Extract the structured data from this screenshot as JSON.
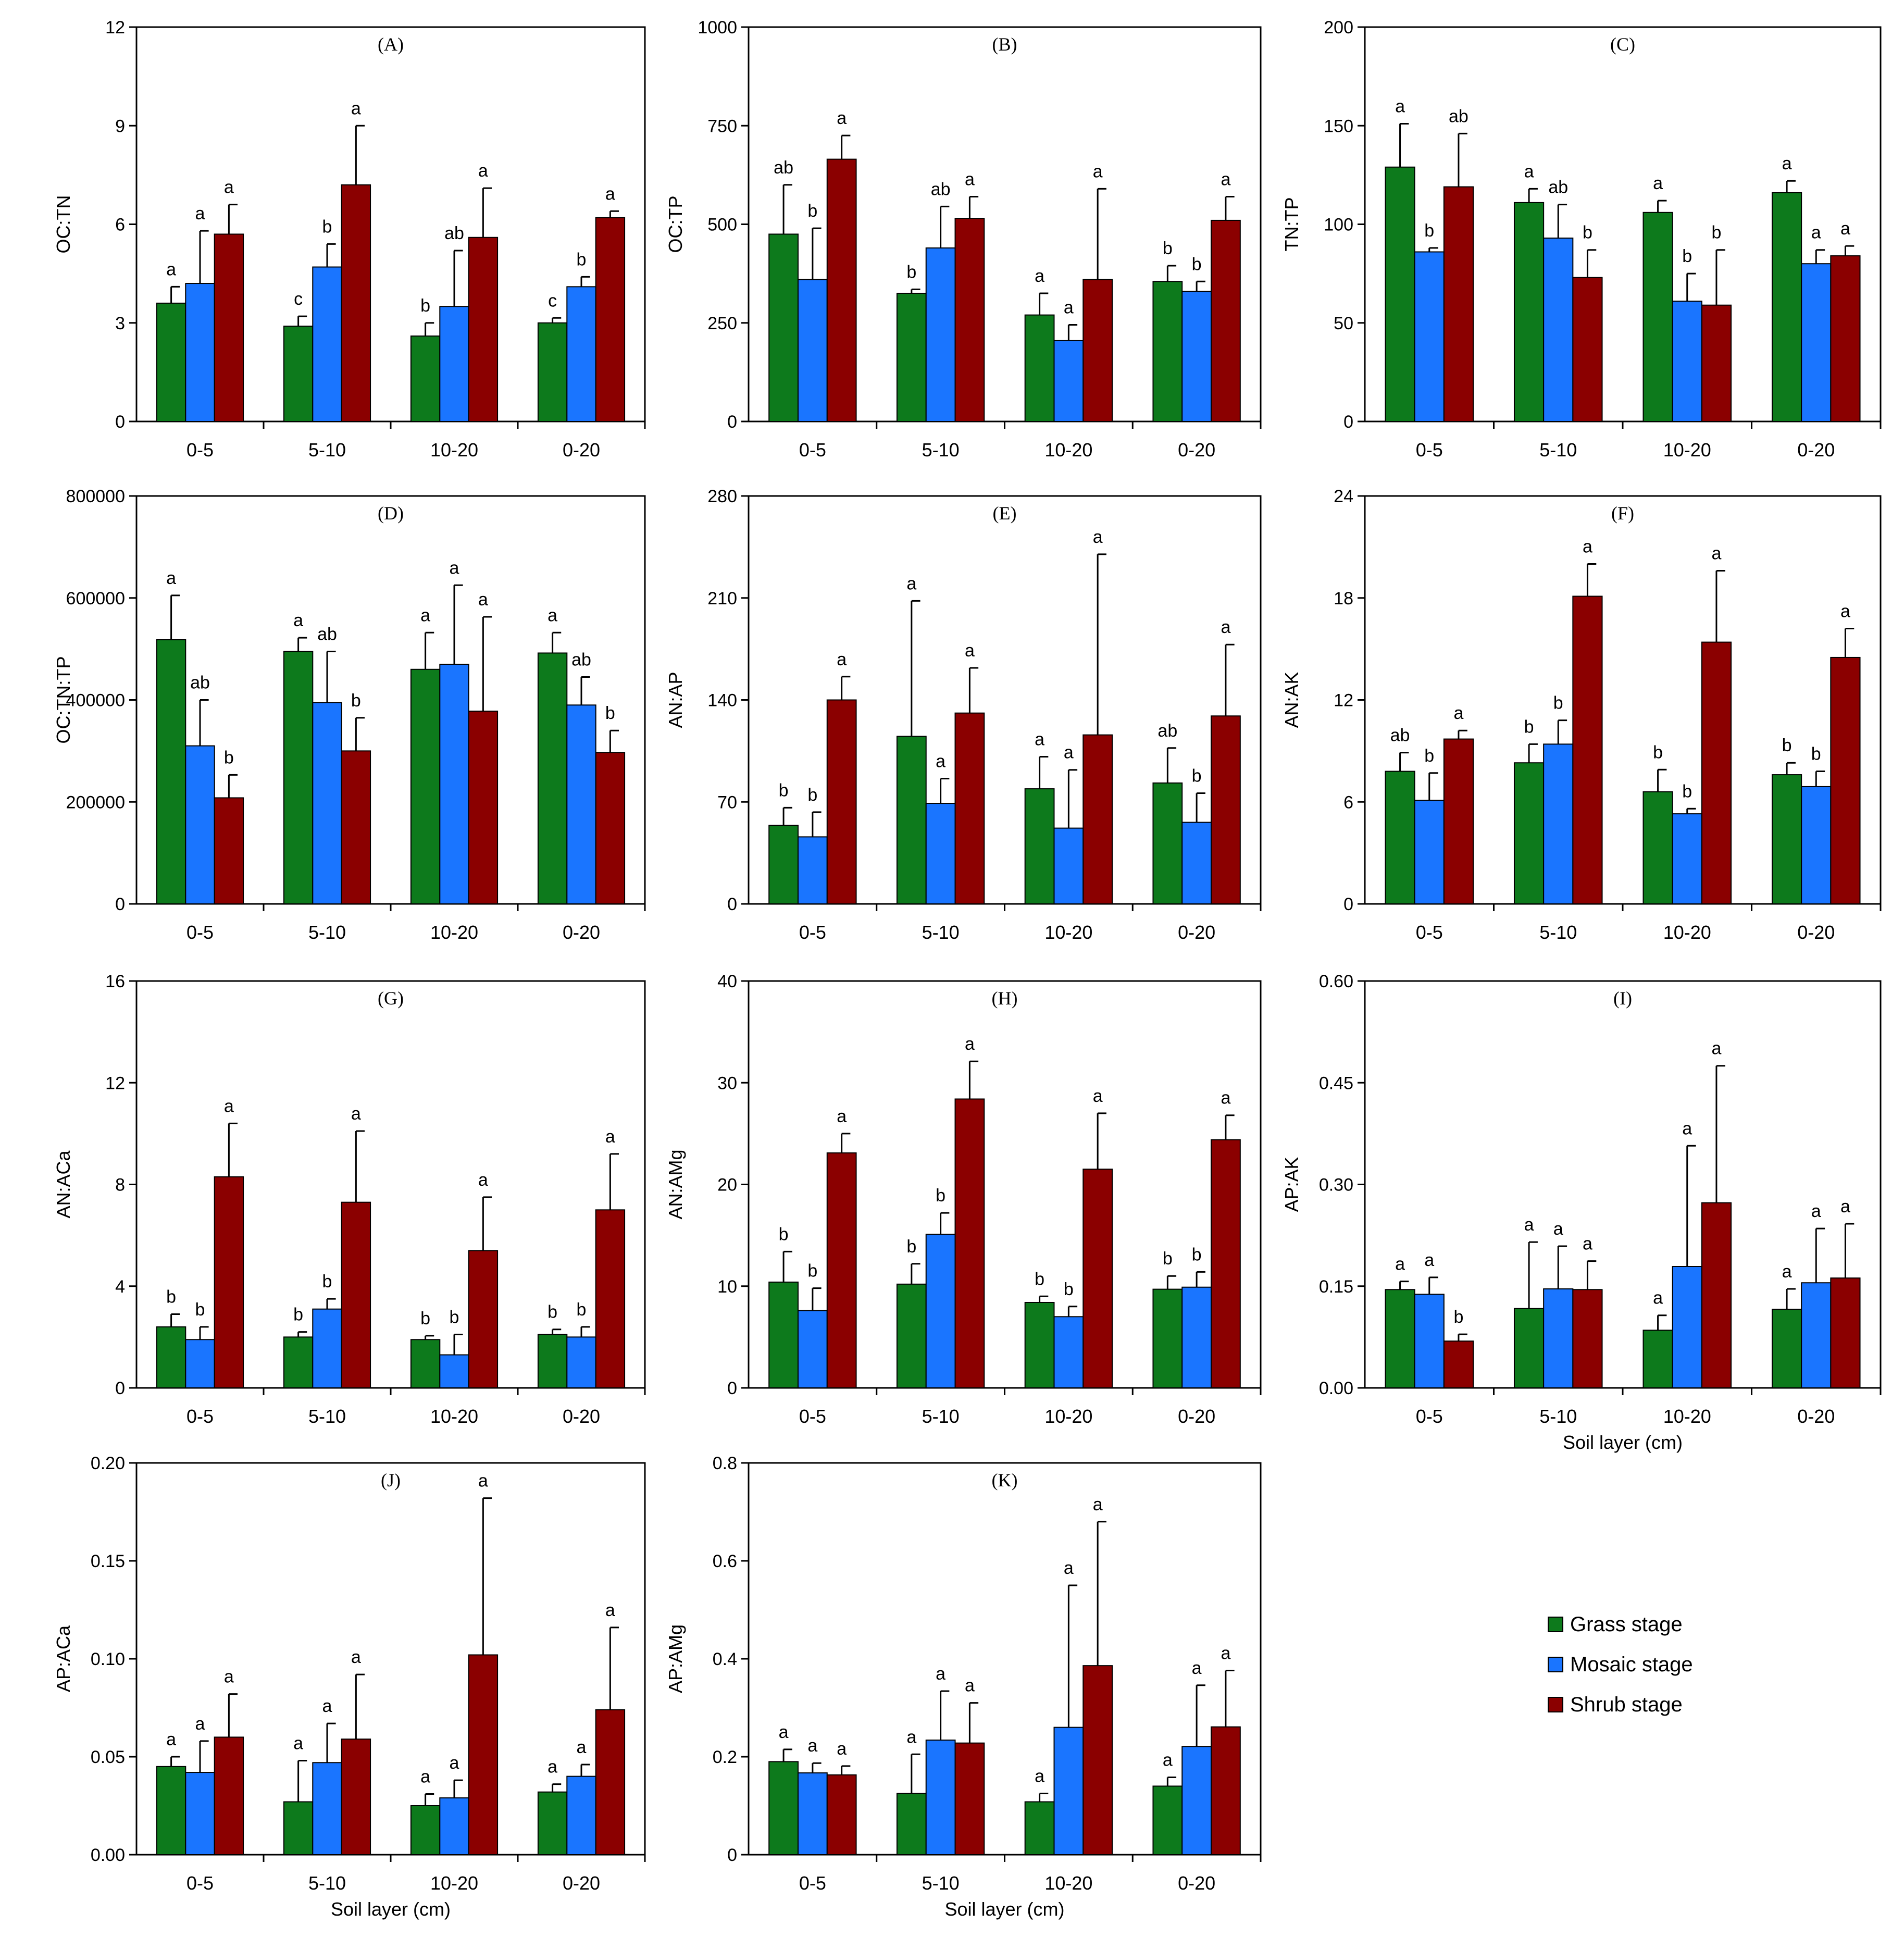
{
  "figure": {
    "legend": {
      "entries": [
        {
          "name": "Grass stage",
          "color": "#0d7a1c"
        },
        {
          "name": "Mosaic stage",
          "color": "#1a75ff"
        },
        {
          "name": "Shrub stage",
          "color": "#8b0000"
        }
      ]
    },
    "xlabel": "Soil layer (cm)"
  },
  "chart_data": [
    {
      "type": "bar",
      "title": "(A)",
      "ylabel": "OC:TN",
      "xlabel": "",
      "categories": [
        "0-5",
        "5-10",
        "10-20",
        "0-20"
      ],
      "ylim": [
        0,
        12
      ],
      "yticks": [
        "0",
        "3",
        "6",
        "9",
        "12"
      ],
      "series": [
        {
          "name": "Grass stage",
          "values": [
            3.6,
            2.9,
            2.6,
            3.0
          ],
          "errors": [
            0.5,
            0.3,
            0.4,
            0.15
          ],
          "letters": [
            "a",
            "c",
            "b",
            "c"
          ]
        },
        {
          "name": "Mosaic stage",
          "values": [
            4.2,
            4.7,
            3.5,
            4.1
          ],
          "errors": [
            1.6,
            0.7,
            1.7,
            0.3
          ],
          "letters": [
            "a",
            "b",
            "ab",
            "b"
          ]
        },
        {
          "name": "Shrub stage",
          "values": [
            5.7,
            7.2,
            5.6,
            6.2
          ],
          "errors": [
            0.9,
            1.8,
            1.5,
            0.2
          ],
          "letters": [
            "a",
            "a",
            "a",
            "a"
          ]
        }
      ]
    },
    {
      "type": "bar",
      "title": "(B)",
      "ylabel": "OC:TP",
      "xlabel": "",
      "categories": [
        "0-5",
        "5-10",
        "10-20",
        "0-20"
      ],
      "ylim": [
        0,
        1000
      ],
      "yticks": [
        "0",
        "250",
        "500",
        "750",
        "1000"
      ],
      "series": [
        {
          "name": "Grass stage",
          "values": [
            475,
            325,
            270,
            355
          ],
          "errors": [
            125,
            10,
            55,
            40
          ],
          "letters": [
            "ab",
            "b",
            "a",
            "b"
          ]
        },
        {
          "name": "Mosaic stage",
          "values": [
            360,
            440,
            205,
            330
          ],
          "errors": [
            130,
            105,
            40,
            25
          ],
          "letters": [
            "b",
            "ab",
            "a",
            "b"
          ]
        },
        {
          "name": "Shrub stage",
          "values": [
            665,
            515,
            360,
            510
          ],
          "errors": [
            60,
            55,
            230,
            60
          ],
          "letters": [
            "a",
            "a",
            "a",
            "a"
          ]
        }
      ]
    },
    {
      "type": "bar",
      "title": "(C)",
      "ylabel": "TN:TP",
      "xlabel": "",
      "categories": [
        "0-5",
        "5-10",
        "10-20",
        "0-20"
      ],
      "ylim": [
        0,
        200
      ],
      "yticks": [
        "0",
        "50",
        "100",
        "150",
        "200"
      ],
      "series": [
        {
          "name": "Grass stage",
          "values": [
            129,
            111,
            106,
            116
          ],
          "errors": [
            22,
            7,
            6,
            6
          ],
          "letters": [
            "a",
            "a",
            "a",
            "a"
          ]
        },
        {
          "name": "Mosaic stage",
          "values": [
            86,
            93,
            61,
            80
          ],
          "errors": [
            2,
            17,
            14,
            7
          ],
          "letters": [
            "b",
            "ab",
            "b",
            "a"
          ]
        },
        {
          "name": "Shrub stage",
          "values": [
            119,
            73,
            59,
            84
          ],
          "errors": [
            27,
            14,
            28,
            5
          ],
          "letters": [
            "ab",
            "b",
            "b",
            "a"
          ]
        }
      ]
    },
    {
      "type": "bar",
      "title": "(D)",
      "ylabel": "OC:TN:TP",
      "xlabel": "",
      "categories": [
        "0-5",
        "5-10",
        "10-20",
        "0-20"
      ],
      "ylim": [
        0,
        800000
      ],
      "yticks": [
        "0",
        "200000",
        "400000",
        "600000",
        "800000"
      ],
      "series": [
        {
          "name": "Grass stage",
          "values": [
            518000,
            495000,
            460000,
            492000
          ],
          "errors": [
            87000,
            27000,
            72000,
            40000
          ],
          "letters": [
            "a",
            "a",
            "a",
            "a"
          ]
        },
        {
          "name": "Mosaic stage",
          "values": [
            310000,
            395000,
            470000,
            390000
          ],
          "errors": [
            90000,
            100000,
            155000,
            55000
          ],
          "letters": [
            "ab",
            "ab",
            "a",
            "ab"
          ]
        },
        {
          "name": "Shrub stage",
          "values": [
            208000,
            300000,
            378000,
            297000
          ],
          "errors": [
            45000,
            65000,
            185000,
            43000
          ],
          "letters": [
            "b",
            "b",
            "a",
            "b"
          ]
        }
      ]
    },
    {
      "type": "bar",
      "title": "(E)",
      "ylabel": "AN:AP",
      "xlabel": "",
      "categories": [
        "0-5",
        "5-10",
        "10-20",
        "0-20"
      ],
      "ylim": [
        0,
        280
      ],
      "yticks": [
        "0",
        "70",
        "140",
        "210",
        "280"
      ],
      "series": [
        {
          "name": "Grass stage",
          "values": [
            54,
            115,
            79,
            83
          ],
          "errors": [
            12,
            93,
            22,
            24
          ],
          "letters": [
            "b",
            "a",
            "a",
            "ab"
          ]
        },
        {
          "name": "Mosaic stage",
          "values": [
            46,
            69,
            52,
            56
          ],
          "errors": [
            17,
            17,
            40,
            20
          ],
          "letters": [
            "b",
            "a",
            "a",
            "b"
          ]
        },
        {
          "name": "Shrub stage",
          "values": [
            140,
            131,
            116,
            129
          ],
          "errors": [
            16,
            31,
            124,
            49
          ],
          "letters": [
            "a",
            "a",
            "a",
            "a"
          ]
        }
      ]
    },
    {
      "type": "bar",
      "title": "(F)",
      "ylabel": "AN:AK",
      "xlabel": "",
      "categories": [
        "0-5",
        "5-10",
        "10-20",
        "0-20"
      ],
      "ylim": [
        0,
        24
      ],
      "yticks": [
        "0",
        "6",
        "12",
        "18",
        "24"
      ],
      "series": [
        {
          "name": "Grass stage",
          "values": [
            7.8,
            8.3,
            6.6,
            7.6
          ],
          "errors": [
            1.1,
            1.1,
            1.3,
            0.7
          ],
          "letters": [
            "ab",
            "b",
            "b",
            "b"
          ]
        },
        {
          "name": "Mosaic stage",
          "values": [
            6.1,
            9.4,
            5.3,
            6.9
          ],
          "errors": [
            1.6,
            1.4,
            0.3,
            0.9
          ],
          "letters": [
            "b",
            "b",
            "b",
            "b"
          ]
        },
        {
          "name": "Shrub stage",
          "values": [
            9.7,
            18.1,
            15.4,
            14.5
          ],
          "errors": [
            0.5,
            1.9,
            4.2,
            1.7
          ],
          "letters": [
            "a",
            "a",
            "a",
            "a"
          ]
        }
      ]
    },
    {
      "type": "bar",
      "title": "(G)",
      "ylabel": "AN:ACa",
      "xlabel": "",
      "categories": [
        "0-5",
        "5-10",
        "10-20",
        "0-20"
      ],
      "ylim": [
        0,
        16
      ],
      "yticks": [
        "0",
        "4",
        "8",
        "12",
        "16"
      ],
      "series": [
        {
          "name": "Grass stage",
          "values": [
            2.4,
            2.0,
            1.9,
            2.1
          ],
          "errors": [
            0.5,
            0.2,
            0.15,
            0.2
          ],
          "letters": [
            "b",
            "b",
            "b",
            "b"
          ]
        },
        {
          "name": "Mosaic stage",
          "values": [
            1.9,
            3.1,
            1.3,
            2.0
          ],
          "errors": [
            0.5,
            0.4,
            0.8,
            0.4
          ],
          "letters": [
            "b",
            "b",
            "b",
            "b"
          ]
        },
        {
          "name": "Shrub stage",
          "values": [
            8.3,
            7.3,
            5.4,
            7.0
          ],
          "errors": [
            2.1,
            2.8,
            2.1,
            2.2
          ],
          "letters": [
            "a",
            "a",
            "a",
            "a"
          ]
        }
      ]
    },
    {
      "type": "bar",
      "title": "(H)",
      "ylabel": "AN:AMg",
      "xlabel": "",
      "categories": [
        "0-5",
        "5-10",
        "10-20",
        "0-20"
      ],
      "ylim": [
        0,
        40
      ],
      "yticks": [
        "0",
        "10",
        "20",
        "30",
        "40"
      ],
      "series": [
        {
          "name": "Grass stage",
          "values": [
            10.4,
            10.2,
            8.4,
            9.7
          ],
          "errors": [
            3.0,
            2.0,
            0.6,
            1.3
          ],
          "letters": [
            "b",
            "b",
            "b",
            "b"
          ]
        },
        {
          "name": "Mosaic stage",
          "values": [
            7.6,
            15.1,
            7.0,
            9.9
          ],
          "errors": [
            2.2,
            2.1,
            1.0,
            1.5
          ],
          "letters": [
            "b",
            "b",
            "b",
            "b"
          ]
        },
        {
          "name": "Shrub stage",
          "values": [
            23.1,
            28.4,
            21.5,
            24.4
          ],
          "errors": [
            1.9,
            3.7,
            5.5,
            2.4
          ],
          "letters": [
            "a",
            "a",
            "a",
            "a"
          ]
        }
      ]
    },
    {
      "type": "bar",
      "title": "(I)",
      "ylabel": "AP:AK",
      "xlabel": "Soil layer (cm)",
      "categories": [
        "0-5",
        "5-10",
        "10-20",
        "0-20"
      ],
      "ylim": [
        0,
        0.6
      ],
      "yticks": [
        "0.00",
        "0.15",
        "0.30",
        "0.45",
        "0.60"
      ],
      "series": [
        {
          "name": "Grass stage",
          "values": [
            0.145,
            0.117,
            0.085,
            0.116
          ],
          "errors": [
            0.012,
            0.098,
            0.022,
            0.03
          ],
          "letters": [
            "a",
            "a",
            "a",
            "a"
          ]
        },
        {
          "name": "Mosaic stage",
          "values": [
            0.138,
            0.146,
            0.179,
            0.155
          ],
          "errors": [
            0.025,
            0.063,
            0.178,
            0.08
          ],
          "letters": [
            "a",
            "a",
            "a",
            "a"
          ]
        },
        {
          "name": "Shrub stage",
          "values": [
            0.069,
            0.145,
            0.273,
            0.162
          ],
          "errors": [
            0.01,
            0.042,
            0.202,
            0.08
          ],
          "letters": [
            "b",
            "a",
            "a",
            "a"
          ]
        }
      ]
    },
    {
      "type": "bar",
      "title": "(J)",
      "ylabel": "AP:ACa",
      "xlabel": "Soil layer (cm)",
      "categories": [
        "0-5",
        "5-10",
        "10-20",
        "0-20"
      ],
      "ylim": [
        0,
        0.2
      ],
      "yticks": [
        "0.00",
        "0.05",
        "0.10",
        "0.15",
        "0.20"
      ],
      "series": [
        {
          "name": "Grass stage",
          "values": [
            0.045,
            0.027,
            0.025,
            0.032
          ],
          "errors": [
            0.005,
            0.021,
            0.006,
            0.004
          ],
          "letters": [
            "a",
            "a",
            "a",
            "a"
          ]
        },
        {
          "name": "Mosaic stage",
          "values": [
            0.042,
            0.047,
            0.029,
            0.04
          ],
          "errors": [
            0.016,
            0.02,
            0.009,
            0.006
          ],
          "letters": [
            "a",
            "a",
            "a",
            "a"
          ]
        },
        {
          "name": "Shrub stage",
          "values": [
            0.06,
            0.059,
            0.102,
            0.074
          ],
          "errors": [
            0.022,
            0.033,
            0.08,
            0.042
          ],
          "letters": [
            "a",
            "a",
            "a",
            "a"
          ]
        }
      ]
    },
    {
      "type": "bar",
      "title": "(K)",
      "ylabel": "AP:AMg",
      "xlabel": "Soil layer (cm)",
      "categories": [
        "0-5",
        "5-10",
        "10-20",
        "0-20"
      ],
      "ylim": [
        0,
        0.8
      ],
      "yticks": [
        "0",
        "0.2",
        "0.4",
        "0.6",
        "0.8"
      ],
      "series": [
        {
          "name": "Grass stage",
          "values": [
            0.19,
            0.125,
            0.108,
            0.14
          ],
          "errors": [
            0.025,
            0.08,
            0.017,
            0.018
          ],
          "letters": [
            "a",
            "a",
            "a",
            "a"
          ]
        },
        {
          "name": "Mosaic stage",
          "values": [
            0.167,
            0.234,
            0.26,
            0.221
          ],
          "errors": [
            0.02,
            0.1,
            0.29,
            0.125
          ],
          "letters": [
            "a",
            "a",
            "a",
            "a"
          ]
        },
        {
          "name": "Shrub stage",
          "values": [
            0.163,
            0.228,
            0.386,
            0.261
          ],
          "errors": [
            0.018,
            0.082,
            0.294,
            0.115
          ],
          "letters": [
            "a",
            "a",
            "a",
            "a"
          ]
        }
      ]
    }
  ]
}
